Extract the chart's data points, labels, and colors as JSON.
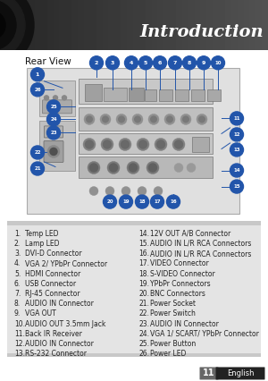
{
  "title": "Introduction",
  "section_title": "Rear View",
  "page_bg": "#ffffff",
  "title_color": "#ffffff",
  "left_items": [
    [
      "1.",
      "Temp LED"
    ],
    [
      "2.",
      "Lamp LED"
    ],
    [
      "3.",
      "DVI-D Connector"
    ],
    [
      "4.",
      "VGA 2/ YPbPr Connector"
    ],
    [
      "5.",
      "HDMI Connector"
    ],
    [
      "6.",
      "USB Connector"
    ],
    [
      "7.",
      "RJ-45 Connector"
    ],
    [
      "8.",
      "AUDIO IN Connector"
    ],
    [
      "9.",
      "VGA OUT"
    ],
    [
      "10.",
      "AUDIO OUT 3.5mm Jack"
    ],
    [
      "11.",
      "Back IR Receiver"
    ],
    [
      "12.",
      "AUDIO IN Connector"
    ],
    [
      "13.",
      "RS-232 Connector"
    ]
  ],
  "right_items": [
    [
      "14.",
      "12V OUT A/B Connector"
    ],
    [
      "15.",
      "AUDIO IN L/R RCA Connectors"
    ],
    [
      "16.",
      "AUDIO IN L/R RCA Connectors"
    ],
    [
      "17.",
      "VIDEO Connector"
    ],
    [
      "18.",
      "S-VIDEO Connector"
    ],
    [
      "19.",
      "YPbPr Connectors"
    ],
    [
      "20.",
      "BNC Connectors"
    ],
    [
      "21.",
      "Power Socket"
    ],
    [
      "22.",
      "Power Switch"
    ],
    [
      "23.",
      "AUDIO IN Connector"
    ],
    [
      "24.",
      "VGA 1/ SCART/ YPbPr Connector"
    ],
    [
      "25.",
      "Power Button"
    ],
    [
      "26.",
      "Power LED"
    ]
  ],
  "footer_text": "11",
  "footer_label": "English",
  "circle_color": "#2255aa",
  "line_color": "#2255aa",
  "connector_color": "#c0c0c0",
  "panel_color": "#b8b8b8",
  "panel_dark": "#888888",
  "panel_light": "#d0d0d0"
}
